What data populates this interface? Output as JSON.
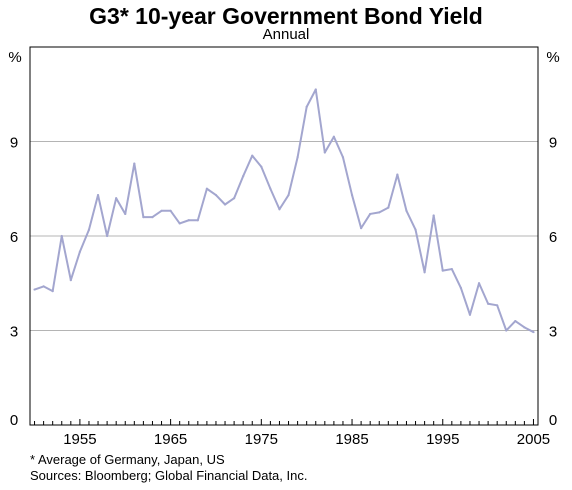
{
  "chart_data": {
    "type": "line",
    "title": "G3* 10-year Government Bond Yield",
    "subtitle": "Annual",
    "ylabel_left": "%",
    "ylabel_right": "%",
    "ylim": [
      0,
      12
    ],
    "yticks": [
      0,
      3,
      6,
      9
    ],
    "xlim": [
      1949.5,
      2005.5
    ],
    "xticks": [
      1955,
      1965,
      1975,
      1985,
      1995,
      2005
    ],
    "grid": true,
    "series_color": "#a3a6cf",
    "series": [
      {
        "name": "",
        "x": [
          1950,
          1951,
          1952,
          1953,
          1954,
          1955,
          1956,
          1957,
          1958,
          1959,
          1960,
          1961,
          1962,
          1963,
          1964,
          1965,
          1966,
          1967,
          1968,
          1969,
          1970,
          1971,
          1972,
          1973,
          1974,
          1975,
          1976,
          1977,
          1978,
          1979,
          1980,
          1981,
          1982,
          1983,
          1984,
          1985,
          1986,
          1987,
          1988,
          1989,
          1990,
          1991,
          1992,
          1993,
          1994,
          1995,
          1996,
          1997,
          1998,
          1999,
          2000,
          2001,
          2002,
          2003,
          2004,
          2005
        ],
        "values": [
          4.3,
          4.4,
          4.25,
          6.0,
          4.6,
          5.5,
          6.2,
          7.3,
          6.0,
          7.2,
          6.7,
          8.3,
          6.6,
          6.6,
          6.8,
          6.8,
          6.4,
          6.5,
          6.5,
          7.5,
          7.3,
          7.0,
          7.2,
          7.9,
          8.55,
          8.2,
          7.5,
          6.85,
          7.3,
          8.5,
          10.1,
          10.65,
          8.65,
          9.15,
          8.5,
          7.3,
          6.25,
          6.7,
          6.75,
          6.9,
          7.95,
          6.8,
          6.2,
          4.85,
          6.65,
          4.9,
          4.95,
          4.35,
          3.5,
          4.5,
          3.85,
          3.8,
          3.0,
          3.3,
          3.1,
          2.95
        ]
      }
    ]
  },
  "notes": [
    "* Average of Germany, Japan, US",
    "Sources: Bloomberg; Global Financial Data, Inc."
  ]
}
